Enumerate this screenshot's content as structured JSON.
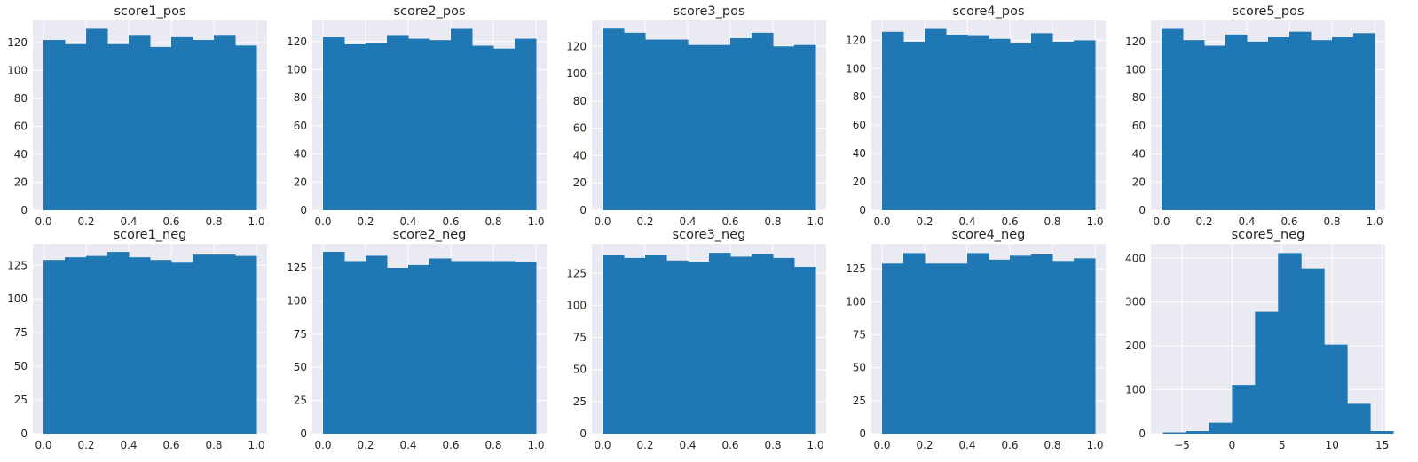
{
  "figure": {
    "style": "seaborn-darkgrid",
    "colors": {
      "bar": "#1f77b4",
      "panel_background": "#eaeaf2",
      "grid": "#ffffff",
      "text": "#262626"
    }
  },
  "chart_data": [
    {
      "type": "bar",
      "title": "score1_pos",
      "xlabel": "",
      "ylabel": "",
      "bin_edges": [
        0.0,
        0.1,
        0.2,
        0.3,
        0.4,
        0.5,
        0.6,
        0.7,
        0.8,
        0.9,
        1.0
      ],
      "values": [
        122,
        119,
        130,
        119,
        125,
        117,
        124,
        122,
        125,
        118
      ],
      "xlim": [
        -0.05,
        1.05
      ],
      "ylim": [
        0,
        136
      ],
      "xticks": [
        0.0,
        0.2,
        0.4,
        0.6,
        0.8,
        1.0
      ],
      "xtick_labels": [
        "0.0",
        "0.2",
        "0.4",
        "0.6",
        "0.8",
        "1.0"
      ],
      "yticks": [
        0,
        20,
        40,
        60,
        80,
        100,
        120
      ],
      "ytick_labels": [
        "0",
        "20",
        "40",
        "60",
        "80",
        "100",
        "120"
      ],
      "grid": true
    },
    {
      "type": "bar",
      "title": "score2_pos",
      "xlabel": "",
      "ylabel": "",
      "bin_edges": [
        0.0,
        0.1,
        0.2,
        0.3,
        0.4,
        0.5,
        0.6,
        0.7,
        0.8,
        0.9,
        1.0
      ],
      "values": [
        123,
        118,
        119,
        124,
        122,
        121,
        129,
        117,
        115,
        122
      ],
      "xlim": [
        -0.05,
        1.05
      ],
      "ylim": [
        0,
        135
      ],
      "xticks": [
        0.0,
        0.2,
        0.4,
        0.6,
        0.8,
        1.0
      ],
      "xtick_labels": [
        "0.0",
        "0.2",
        "0.4",
        "0.6",
        "0.8",
        "1.0"
      ],
      "yticks": [
        0,
        20,
        40,
        60,
        80,
        100,
        120
      ],
      "ytick_labels": [
        "0",
        "20",
        "40",
        "60",
        "80",
        "100",
        "120"
      ],
      "grid": true
    },
    {
      "type": "bar",
      "title": "score3_pos",
      "xlabel": "",
      "ylabel": "",
      "bin_edges": [
        0.0,
        0.1,
        0.2,
        0.3,
        0.4,
        0.5,
        0.6,
        0.7,
        0.8,
        0.9,
        1.0
      ],
      "values": [
        133,
        130,
        125,
        125,
        121,
        121,
        126,
        130,
        120,
        121
      ],
      "xlim": [
        -0.05,
        1.05
      ],
      "ylim": [
        0,
        139
      ],
      "xticks": [
        0.0,
        0.2,
        0.4,
        0.6,
        0.8,
        1.0
      ],
      "xtick_labels": [
        "0.0",
        "0.2",
        "0.4",
        "0.6",
        "0.8",
        "1.0"
      ],
      "yticks": [
        0,
        20,
        40,
        60,
        80,
        100,
        120
      ],
      "ytick_labels": [
        "0",
        "20",
        "40",
        "60",
        "80",
        "100",
        "120"
      ],
      "grid": true
    },
    {
      "type": "bar",
      "title": "score4_pos",
      "xlabel": "",
      "ylabel": "",
      "bin_edges": [
        0.0,
        0.1,
        0.2,
        0.3,
        0.4,
        0.5,
        0.6,
        0.7,
        0.8,
        0.9,
        1.0
      ],
      "values": [
        126,
        119,
        128,
        124,
        123,
        121,
        118,
        125,
        119,
        120
      ],
      "xlim": [
        -0.05,
        1.05
      ],
      "ylim": [
        0,
        134
      ],
      "xticks": [
        0.0,
        0.2,
        0.4,
        0.6,
        0.8,
        1.0
      ],
      "xtick_labels": [
        "0.0",
        "0.2",
        "0.4",
        "0.6",
        "0.8",
        "1.0"
      ],
      "yticks": [
        0,
        20,
        40,
        60,
        80,
        100,
        120
      ],
      "ytick_labels": [
        "0",
        "20",
        "40",
        "60",
        "80",
        "100",
        "120"
      ],
      "grid": true
    },
    {
      "type": "bar",
      "title": "score5_pos",
      "xlabel": "",
      "ylabel": "",
      "bin_edges": [
        0.0,
        0.1,
        0.2,
        0.3,
        0.4,
        0.5,
        0.6,
        0.7,
        0.8,
        0.9,
        1.0
      ],
      "values": [
        129,
        121,
        117,
        125,
        120,
        123,
        127,
        121,
        123,
        126
      ],
      "xlim": [
        -0.05,
        1.05
      ],
      "ylim": [
        0,
        135
      ],
      "xticks": [
        0.0,
        0.2,
        0.4,
        0.6,
        0.8,
        1.0
      ],
      "xtick_labels": [
        "0.0",
        "0.2",
        "0.4",
        "0.6",
        "0.8",
        "1.0"
      ],
      "yticks": [
        0,
        20,
        40,
        60,
        80,
        100,
        120
      ],
      "ytick_labels": [
        "0",
        "20",
        "40",
        "60",
        "80",
        "100",
        "120"
      ],
      "grid": true
    },
    {
      "type": "bar",
      "title": "score1_neg",
      "xlabel": "",
      "ylabel": "",
      "bin_edges": [
        0.0,
        0.1,
        0.2,
        0.3,
        0.4,
        0.5,
        0.6,
        0.7,
        0.8,
        0.9,
        1.0
      ],
      "values": [
        129,
        131,
        132,
        135,
        131,
        129,
        127,
        133,
        133,
        132
      ],
      "xlim": [
        -0.05,
        1.05
      ],
      "ylim": [
        0,
        141
      ],
      "xticks": [
        0.0,
        0.2,
        0.4,
        0.6,
        0.8,
        1.0
      ],
      "xtick_labels": [
        "0.0",
        "0.2",
        "0.4",
        "0.6",
        "0.8",
        "1.0"
      ],
      "yticks": [
        0,
        25,
        50,
        75,
        100,
        125
      ],
      "ytick_labels": [
        "0",
        "25",
        "50",
        "75",
        "100",
        "125"
      ],
      "grid": true
    },
    {
      "type": "bar",
      "title": "score2_neg",
      "xlabel": "",
      "ylabel": "",
      "bin_edges": [
        0.0,
        0.1,
        0.2,
        0.3,
        0.4,
        0.5,
        0.6,
        0.7,
        0.8,
        0.9,
        1.0
      ],
      "values": [
        137,
        130,
        134,
        125,
        127,
        132,
        130,
        130,
        130,
        129
      ],
      "xlim": [
        -0.05,
        1.05
      ],
      "ylim": [
        0,
        143
      ],
      "xticks": [
        0.0,
        0.2,
        0.4,
        0.6,
        0.8,
        1.0
      ],
      "xtick_labels": [
        "0.0",
        "0.2",
        "0.4",
        "0.6",
        "0.8",
        "1.0"
      ],
      "yticks": [
        0,
        25,
        50,
        75,
        100,
        125
      ],
      "ytick_labels": [
        "0",
        "25",
        "50",
        "75",
        "100",
        "125"
      ],
      "grid": true
    },
    {
      "type": "bar",
      "title": "score3_neg",
      "xlabel": "",
      "ylabel": "",
      "bin_edges": [
        0.0,
        0.1,
        0.2,
        0.3,
        0.4,
        0.5,
        0.6,
        0.7,
        0.8,
        0.9,
        1.0
      ],
      "values": [
        139,
        137,
        139,
        135,
        134,
        141,
        138,
        140,
        137,
        130
      ],
      "xlim": [
        -0.05,
        1.05
      ],
      "ylim": [
        0,
        148
      ],
      "xticks": [
        0.0,
        0.2,
        0.4,
        0.6,
        0.8,
        1.0
      ],
      "xtick_labels": [
        "0.0",
        "0.2",
        "0.4",
        "0.6",
        "0.8",
        "1.0"
      ],
      "yticks": [
        0,
        25,
        50,
        75,
        100,
        125
      ],
      "ytick_labels": [
        "0",
        "25",
        "50",
        "75",
        "100",
        "125"
      ],
      "grid": true
    },
    {
      "type": "bar",
      "title": "score4_neg",
      "xlabel": "",
      "ylabel": "",
      "bin_edges": [
        0.0,
        0.1,
        0.2,
        0.3,
        0.4,
        0.5,
        0.6,
        0.7,
        0.8,
        0.9,
        1.0
      ],
      "values": [
        129,
        137,
        129,
        129,
        137,
        132,
        135,
        136,
        131,
        133
      ],
      "xlim": [
        -0.05,
        1.05
      ],
      "ylim": [
        0,
        144
      ],
      "xticks": [
        0.0,
        0.2,
        0.4,
        0.6,
        0.8,
        1.0
      ],
      "xtick_labels": [
        "0.0",
        "0.2",
        "0.4",
        "0.6",
        "0.8",
        "1.0"
      ],
      "yticks": [
        0,
        25,
        50,
        75,
        100,
        125
      ],
      "ytick_labels": [
        "0",
        "25",
        "50",
        "75",
        "100",
        "125"
      ],
      "grid": true
    },
    {
      "type": "bar",
      "title": "score5_neg",
      "xlabel": "",
      "ylabel": "",
      "bin_edges": [
        -6.9,
        -4.6,
        -2.3,
        0.0,
        2.3,
        4.6,
        6.9,
        9.2,
        11.5,
        13.8,
        16.1
      ],
      "values": [
        3,
        6,
        25,
        111,
        278,
        412,
        377,
        203,
        68,
        6
      ],
      "xlim": [
        -8.1,
        15.3
      ],
      "ylim": [
        0,
        433
      ],
      "xticks": [
        -5,
        0,
        5,
        10,
        15
      ],
      "xtick_labels": [
        "−5",
        "0",
        "5",
        "10",
        "15"
      ],
      "yticks": [
        0,
        100,
        200,
        300,
        400
      ],
      "ytick_labels": [
        "0",
        "100",
        "200",
        "300",
        "400"
      ],
      "grid": true
    }
  ]
}
